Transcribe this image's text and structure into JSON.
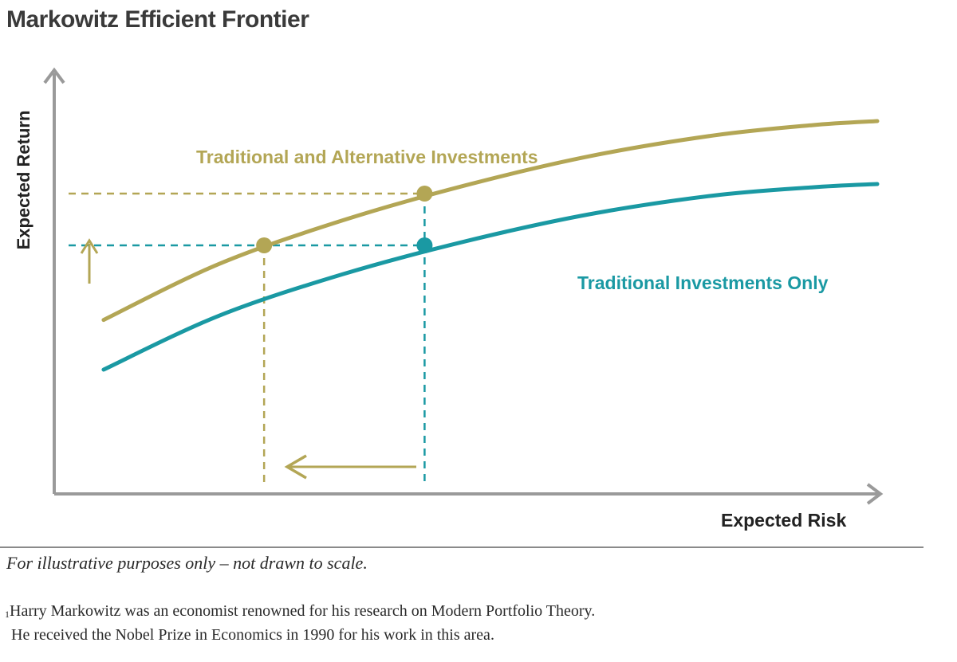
{
  "chart_data": {
    "type": "line",
    "title": "Markowitz Efficient Frontier",
    "xlabel": "Expected Risk",
    "ylabel": "Expected Return",
    "grid": false,
    "axis_ticks": false,
    "series": [
      {
        "name": "Traditional and Alternative Investments",
        "color": "#b3a655",
        "x": [
          0.06,
          0.2,
          0.35,
          0.5,
          0.65,
          0.8,
          0.92,
          1.0
        ],
        "y": [
          0.42,
          0.555,
          0.66,
          0.745,
          0.815,
          0.865,
          0.89,
          0.9
        ]
      },
      {
        "name": "Traditional Investments Only",
        "color": "#1a99a3",
        "x": [
          0.06,
          0.2,
          0.35,
          0.5,
          0.65,
          0.8,
          0.92,
          1.0
        ],
        "y": [
          0.3,
          0.43,
          0.53,
          0.61,
          0.675,
          0.72,
          0.74,
          0.748
        ]
      }
    ],
    "highlight_points": [
      {
        "series": 0,
        "x": 0.255,
        "y": 0.6
      },
      {
        "series": 0,
        "x": 0.45,
        "y": 0.725
      },
      {
        "series": 1,
        "x": 0.45,
        "y": 0.6
      }
    ],
    "reference_lines": [
      {
        "type": "horizontal",
        "y": 0.725,
        "color": "#b3a655"
      },
      {
        "type": "horizontal",
        "y": 0.6,
        "color": "#1a99a3"
      },
      {
        "type": "vertical",
        "x": 0.255,
        "color": "#b3a655"
      },
      {
        "type": "vertical",
        "x": 0.45,
        "color": "#1a99a3"
      }
    ],
    "annotations": [
      {
        "type": "arrow-up",
        "meaning": "higher return",
        "color": "#b3a655"
      },
      {
        "type": "arrow-left",
        "meaning": "lower risk",
        "color": "#b3a655"
      }
    ]
  },
  "note": "For illustrative purposes only – not drawn to scale.",
  "footnote": {
    "marker": "1",
    "line1": "Harry Markowitz was an economist renowned for his research on Modern Portfolio Theory.",
    "line2": "He received the Nobel Prize in Economics in 1990 for his work in this area."
  },
  "colors": {
    "axis": "#9a9a9a",
    "alt": "#b3a655",
    "trad": "#1a99a3"
  }
}
